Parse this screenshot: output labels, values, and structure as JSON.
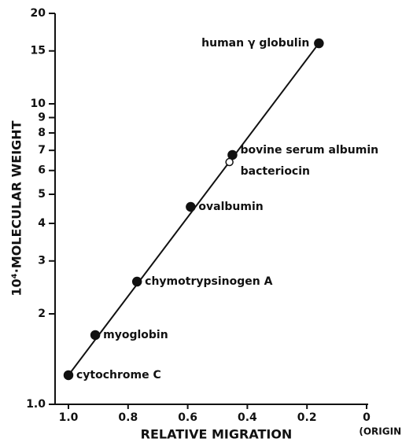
{
  "chart_data": {
    "type": "scatter",
    "xlabel": "RELATIVE MIGRATION",
    "ylabel": "10⁴·MOLECULAR WEIGHT",
    "annotation": "(ORIGIN)",
    "yscale": "log",
    "xlim": [
      1,
      0
    ],
    "ylim": [
      1,
      20
    ],
    "xticks": [
      {
        "value": 1,
        "label": "1.0"
      },
      0.8,
      0.6,
      0.4,
      0.2,
      0
    ],
    "yticks": [
      {
        "value": 1,
        "label": "1.0"
      },
      2,
      3,
      4,
      5,
      6,
      7,
      8,
      9,
      10,
      15,
      20
    ],
    "color": "#111111",
    "fit_line": true,
    "points": [
      {
        "label": "cytochrome C",
        "x": 1.0,
        "y": 1.25,
        "filled": true
      },
      {
        "label": "myoglobin",
        "x": 0.91,
        "y": 1.7,
        "filled": true
      },
      {
        "label": "chymotrypsinogen A",
        "x": 0.77,
        "y": 2.56,
        "filled": true
      },
      {
        "label": "ovalbumin",
        "x": 0.59,
        "y": 4.54,
        "filled": true
      },
      {
        "label": "bovine serum albumin",
        "x": 0.45,
        "y": 6.76,
        "filled": true
      },
      {
        "label": "bacteriocin",
        "x": 0.46,
        "y": 6.4,
        "filled": false
      },
      {
        "label": "human γ globulin",
        "x": 0.16,
        "y": 15.9,
        "filled": true
      }
    ]
  }
}
